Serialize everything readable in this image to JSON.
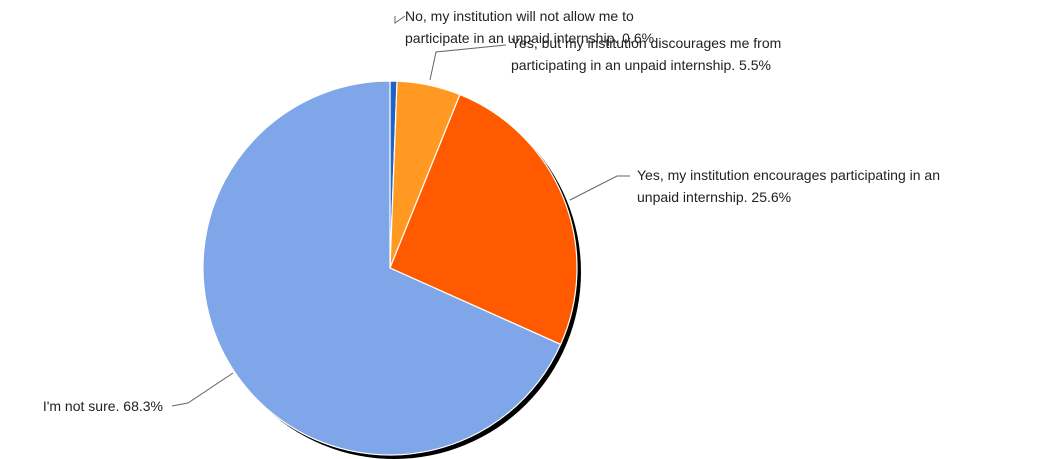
{
  "chart_data": {
    "type": "pie",
    "title": "",
    "slices": [
      {
        "lines": [
          "No, my institution will not allow me to",
          "participate in an unpaid internship. 0.6%"
        ],
        "value": 0.6,
        "color": "#1f63c9"
      },
      {
        "lines": [
          "Yes, but my institution discourages me from",
          "participating in an unpaid internship. 5.5%"
        ],
        "value": 5.5,
        "color": "#ff9922"
      },
      {
        "lines": [
          "Yes, my institution encourages participating in an",
          "unpaid internship. 25.6%"
        ],
        "value": 25.6,
        "color": "#ff5a00"
      },
      {
        "lines": [
          "I'm not sure. 68.3%"
        ],
        "value": 68.3,
        "color": "#7fa6e8"
      }
    ]
  }
}
